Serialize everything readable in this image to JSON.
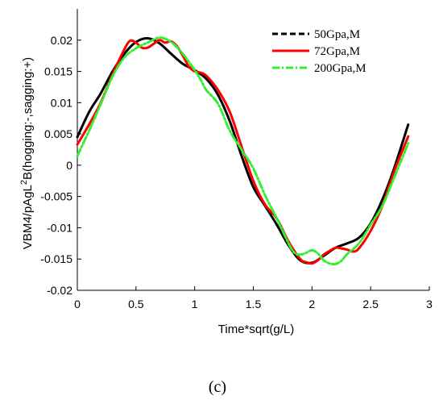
{
  "chart_data": {
    "type": "line",
    "title": "",
    "xlabel": "Time*sqrt(g/L)",
    "ylabel": "VBM4/ρAgL²B(hogging:-,sagging:+)",
    "ylabel_parts": {
      "before": "VBM4/pAgL",
      "sup": "2",
      "after": "B(hogging:-,sagging:+)"
    },
    "xlim": [
      0,
      3
    ],
    "ylim": [
      -0.02,
      0.025
    ],
    "xticks": [
      0,
      0.5,
      1,
      1.5,
      2,
      2.5,
      3
    ],
    "xtick_labels": [
      "0",
      "0.5",
      "1",
      "1.5",
      "2",
      "2.5",
      "3"
    ],
    "yticks": [
      -0.02,
      -0.015,
      -0.01,
      -0.005,
      0,
      0.005,
      0.01,
      0.015,
      0.02
    ],
    "ytick_labels": [
      "-0.02",
      "-0.015",
      "-0.01",
      "-0.005",
      "0",
      "0.005",
      "0.01",
      "0.015",
      "0.02"
    ],
    "grid": false,
    "legend_position": "top-right",
    "panel_label": "(c)",
    "series": [
      {
        "name": "50Gpa,M",
        "color": "#000000",
        "dash": "solid",
        "x": [
          0,
          0.1,
          0.2,
          0.3,
          0.4,
          0.5,
          0.6,
          0.7,
          0.8,
          0.9,
          1.0,
          1.1,
          1.2,
          1.3,
          1.4,
          1.5,
          1.6,
          1.7,
          1.8,
          1.9,
          2.0,
          2.1,
          2.2,
          2.3,
          2.4,
          2.5,
          2.6,
          2.7,
          2.82
        ],
        "y": [
          0.0045,
          0.0085,
          0.0115,
          0.015,
          0.0178,
          0.0197,
          0.0203,
          0.0195,
          0.0178,
          0.0162,
          0.0152,
          0.0138,
          0.0112,
          0.007,
          0.0015,
          -0.0035,
          -0.0065,
          -0.0095,
          -0.0128,
          -0.0152,
          -0.0156,
          -0.0145,
          -0.0132,
          -0.0125,
          -0.0116,
          -0.0093,
          -0.0055,
          -0.0005,
          0.0065
        ]
      },
      {
        "name": "72Gpa,M",
        "color": "#ff0000",
        "dash": "solid",
        "x": [
          0,
          0.1,
          0.2,
          0.3,
          0.4,
          0.45,
          0.5,
          0.55,
          0.6,
          0.65,
          0.7,
          0.75,
          0.8,
          0.85,
          0.9,
          0.95,
          1.0,
          1.05,
          1.1,
          1.2,
          1.3,
          1.4,
          1.5,
          1.6,
          1.7,
          1.8,
          1.9,
          1.95,
          2.0,
          2.05,
          2.1,
          2.15,
          2.2,
          2.25,
          2.3,
          2.35,
          2.4,
          2.5,
          2.6,
          2.7,
          2.82
        ],
        "y": [
          0.0033,
          0.0065,
          0.01,
          0.0145,
          0.0185,
          0.0199,
          0.0196,
          0.0188,
          0.0188,
          0.0194,
          0.02,
          0.0196,
          0.0198,
          0.019,
          0.0175,
          0.0158,
          0.015,
          0.0148,
          0.0143,
          0.012,
          0.0085,
          0.003,
          -0.0025,
          -0.0063,
          -0.0085,
          -0.0122,
          -0.015,
          -0.0155,
          -0.0157,
          -0.0152,
          -0.0143,
          -0.0137,
          -0.0132,
          -0.0133,
          -0.0135,
          -0.0138,
          -0.0133,
          -0.0105,
          -0.0065,
          -0.001,
          0.0046
        ]
      },
      {
        "name": "200Gpa,M",
        "color": "#33ee33",
        "dash": "dashdot",
        "x": [
          0,
          0.1,
          0.2,
          0.3,
          0.4,
          0.5,
          0.6,
          0.7,
          0.8,
          0.9,
          1.0,
          1.05,
          1.1,
          1.2,
          1.3,
          1.4,
          1.5,
          1.6,
          1.7,
          1.8,
          1.85,
          1.9,
          1.95,
          2.0,
          2.05,
          2.1,
          2.15,
          2.2,
          2.25,
          2.3,
          2.4,
          2.5,
          2.6,
          2.7,
          2.82
        ],
        "y": [
          0.0015,
          0.0055,
          0.0098,
          0.0142,
          0.0172,
          0.0187,
          0.0196,
          0.0204,
          0.0197,
          0.0178,
          0.0152,
          0.0137,
          0.012,
          0.0098,
          0.0055,
          0.0025,
          -0.0005,
          -0.0048,
          -0.0085,
          -0.0125,
          -0.014,
          -0.0143,
          -0.014,
          -0.0136,
          -0.0141,
          -0.0152,
          -0.0157,
          -0.0158,
          -0.0153,
          -0.0142,
          -0.0125,
          -0.0095,
          -0.0065,
          -0.002,
          0.0035
        ]
      }
    ]
  }
}
